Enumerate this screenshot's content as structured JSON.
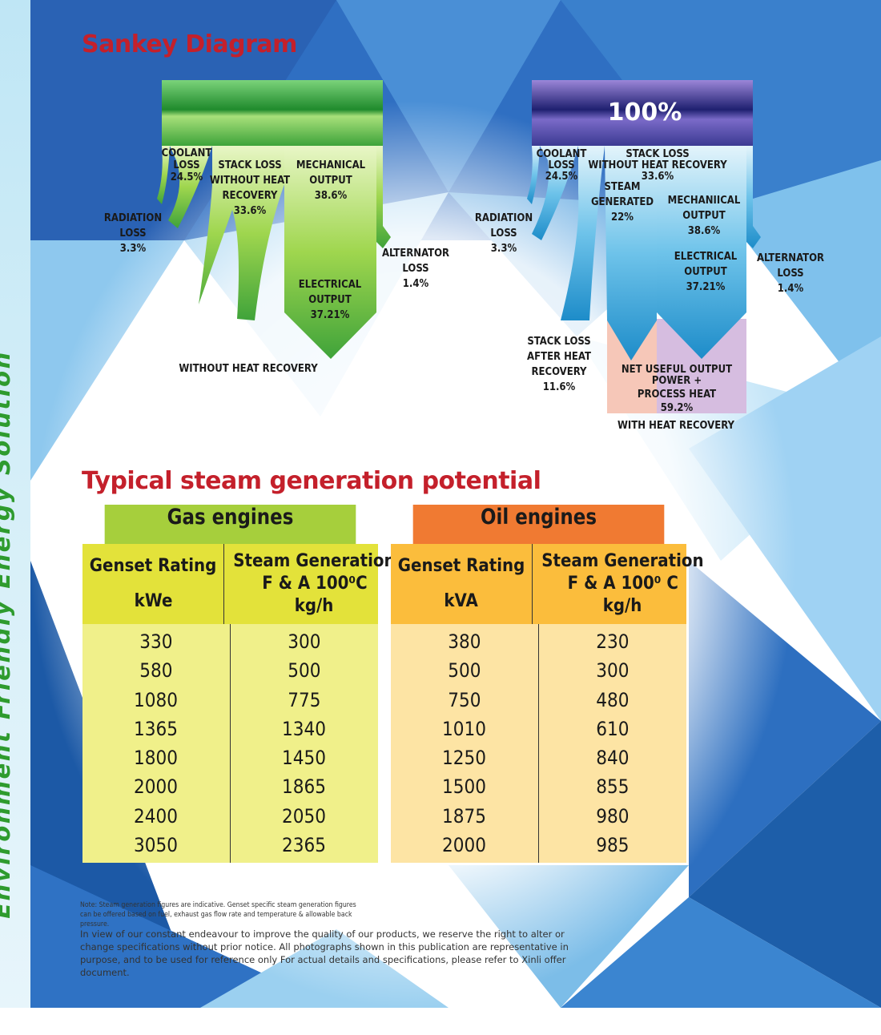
{
  "side_text": "Environment Friendly Energy Solution",
  "sankey": {
    "title": "Sankey Diagram",
    "left": {
      "coolant": [
        "COOLANT",
        "LOSS",
        "24.5%"
      ],
      "stack": [
        "STACK LOSS",
        "WITHOUT HEAT",
        "RECOVERY",
        "33.6%"
      ],
      "mechanical": [
        "MECHANICAL",
        "OUTPUT",
        "38.6%"
      ],
      "radiation": [
        "RADIATION",
        "LOSS",
        "3.3%"
      ],
      "alternator": [
        "ALTERNATOR",
        "LOSS",
        "1.4%"
      ],
      "electrical": [
        "ELECTRICAL",
        "OUTPUT",
        "37.21%"
      ],
      "caption": "WITHOUT HEAT RECOVERY"
    },
    "right": {
      "total": "100%",
      "coolant": [
        "COOLANT",
        "LOSS",
        "24.5%"
      ],
      "stack": [
        "STACK LOSS",
        "WITHOUT HEAT RECOVERY",
        "33.6%"
      ],
      "steam": [
        "STEAM",
        "GENERATED",
        "22%"
      ],
      "mechanical": [
        "MECHANIICAL",
        "OUTPUT",
        "38.6%"
      ],
      "radiation": [
        "RADIATION",
        "LOSS",
        "3.3%"
      ],
      "electrical": [
        "ELECTRICAL",
        "OUTPUT",
        "37.21%"
      ],
      "alternator": [
        "ALTERNATOR",
        "LOSS",
        "1.4%"
      ],
      "stack_after": [
        "STACK LOSS",
        "AFTER HEAT",
        "RECOVERY",
        "11.6%"
      ],
      "net": [
        "NET USEFUL OUTPUT",
        "POWER +",
        "PROCESS HEAT",
        "59.2%"
      ],
      "caption": "WITH HEAT RECOVERY"
    }
  },
  "steam_section": {
    "title": "Typical steam generation potential",
    "gas": {
      "heading": "Gas engines",
      "col1": [
        "Genset Rating",
        "kWe"
      ],
      "col2": [
        "Steam Generation",
        "F & A 100⁰C",
        "kg/h"
      ],
      "ratings": [
        "330",
        "580",
        "1080",
        "1365",
        "1800",
        "2000",
        "2400",
        "3050"
      ],
      "steam": [
        "300",
        "500",
        "775",
        "1340",
        "1450",
        "1865",
        "2050",
        "2365"
      ]
    },
    "oil": {
      "heading": "Oil engines",
      "col1": [
        "Genset Rating",
        "kVA"
      ],
      "col2": [
        "Steam Generation",
        "F & A 100⁰ C",
        "kg/h"
      ],
      "ratings": [
        "380",
        "500",
        "750",
        "1010",
        "1250",
        "1500",
        "1875",
        "2000"
      ],
      "steam": [
        "230",
        "300",
        "480",
        "610",
        "840",
        "855",
        "980",
        "985"
      ]
    }
  },
  "note": "Note: Steam generation figures are indicative. Genset specific steam generation figures can be offered based on fuel, exhaust gas flow rate and temperature & allowable back pressure.",
  "disclaimer": "In view of our constant endeavour to improve the quality of our products, we reserve the right to alter or change specifications without prior notice. All photographs shown in this publication are representative in purpose, and to be used for reference only For actual details and specifications, please refer to Xinli offer document."
}
